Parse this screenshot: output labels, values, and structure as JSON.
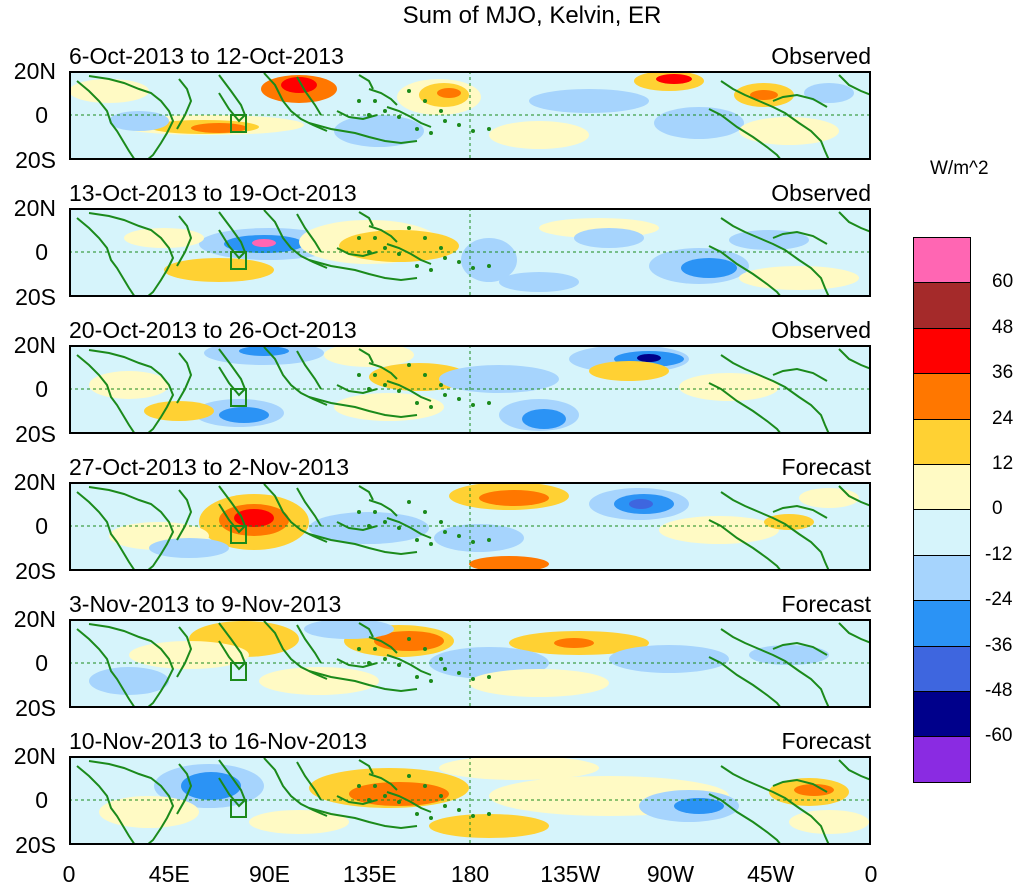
{
  "title": "Sum of MJO, Kelvin, ER",
  "units": "W/m^2",
  "panels": [
    {
      "date_range": "6-Oct-2013 to 12-Oct-2013",
      "type": "Observed"
    },
    {
      "date_range": "13-Oct-2013 to 19-Oct-2013",
      "type": "Observed"
    },
    {
      "date_range": "20-Oct-2013 to 26-Oct-2013",
      "type": "Observed"
    },
    {
      "date_range": "27-Oct-2013 to 2-Nov-2013",
      "type": "Forecast"
    },
    {
      "date_range": "3-Nov-2013 to 9-Nov-2013",
      "type": "Forecast"
    },
    {
      "date_range": "10-Nov-2013 to 16-Nov-2013",
      "type": "Forecast"
    }
  ],
  "lat_labels": [
    "20N",
    "0",
    "20S"
  ],
  "lon_labels": [
    "0",
    "45E",
    "90E",
    "135E",
    "180",
    "135W",
    "90W",
    "45W",
    "0"
  ],
  "colorbar": {
    "labels": [
      "60",
      "48",
      "36",
      "24",
      "12",
      "0",
      "-12",
      "-24",
      "-36",
      "-48",
      "-60"
    ],
    "colors": [
      "#ff66b3",
      "#a52a2a",
      "#ff0000",
      "#ff7700",
      "#ffd133",
      "#fffac4",
      "#d6f4fb",
      "#a6d4fd",
      "#2b93f5",
      "#3e66df",
      "#00008b",
      "#8a2be2"
    ]
  },
  "colors": {
    "land_outline": "#1b8a1b",
    "equator_line": "#1b8a1b"
  }
}
